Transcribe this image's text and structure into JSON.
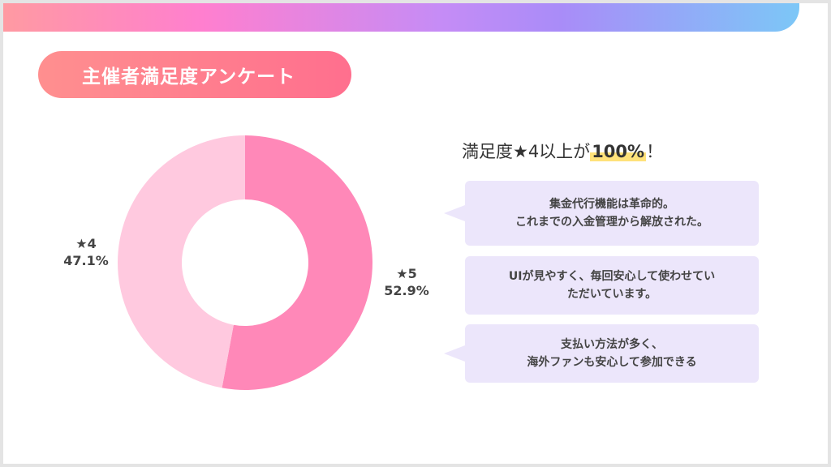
{
  "header": {
    "title": "主催者満足度アンケート"
  },
  "headline": {
    "prefix": "満足度★4以上が",
    "highlight": "100%",
    "suffix": "！"
  },
  "comments": [
    {
      "lines": [
        "集金代行機能は革命的。",
        "これまでの入金管理から解放された。"
      ],
      "has_tail": true
    },
    {
      "lines": [
        "UIが見やすく、毎回安心して使わせてい",
        "ただいています。"
      ],
      "has_tail": false
    },
    {
      "lines": [
        "支払い方法が多く、",
        "海外ファンも安心して参加できる"
      ],
      "has_tail": true
    }
  ],
  "chart_data": {
    "type": "pie",
    "variant": "donut",
    "slices": [
      {
        "label": "★5",
        "value": 52.9,
        "display": "52.9%",
        "color": "#ff88b8"
      },
      {
        "label": "★4",
        "value": 47.1,
        "display": "47.1%",
        "color": "#ffc9df"
      }
    ]
  }
}
